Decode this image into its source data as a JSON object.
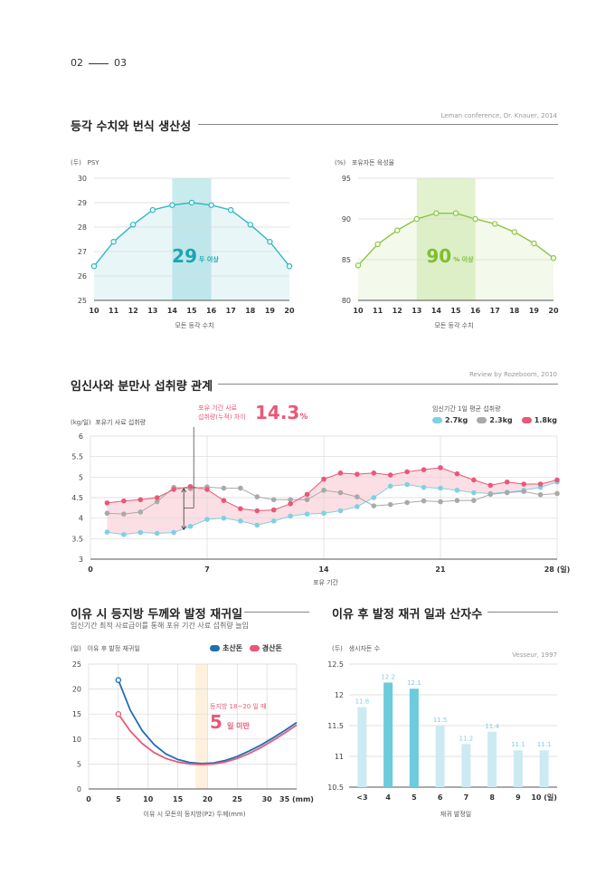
{
  "page_numbers": {
    "left": "02",
    "right": "03"
  },
  "sections": {
    "s1": {
      "title": "등각 수치와 번식 생산성",
      "source": "Leman conference, Dr. Knauer, 2014"
    },
    "s2": {
      "title": "임신사와 분만사 섭취량 관계",
      "source": "Review by Rozeboom, 2010"
    },
    "s3": {
      "title": "이유 시 등지방 두께와 발정 재귀일",
      "subtitle": "임신기간 최적 사료급이를 통해 포유 기간 사료 섭취량 늘임"
    },
    "s4": {
      "title": "이유 후 발정 재귀 일과 산자수",
      "source": "Vesseur, 1997"
    }
  },
  "colors": {
    "teal": "#2bb8c2",
    "green": "#8cc63f",
    "pink": "#e95878",
    "gray": "#a9a9a9",
    "lightblue": "#7fd0e4",
    "navy": "#1c6fb5"
  },
  "chart_data": [
    {
      "type": "line",
      "unit_label": "(두)",
      "series_label": "PSY",
      "xlabel": "모돈 등각 수치",
      "x": [
        10,
        11,
        12,
        13,
        14,
        15,
        16,
        17,
        18,
        19
      ],
      "x_ticks": [
        10,
        11,
        12,
        13,
        14,
        15,
        16,
        17,
        18,
        19,
        20
      ],
      "xlim": [
        10,
        20
      ],
      "ylim": [
        25,
        30
      ],
      "y_ticks": [
        25,
        26,
        27,
        28,
        29,
        30
      ],
      "series": [
        {
          "values": [
            26.4,
            27.4,
            28.1,
            28.7,
            28.9,
            29.0,
            28.9,
            28.7,
            28.1,
            27.4,
            26.4
          ],
          "x": [
            10,
            11,
            12,
            13,
            14,
            15,
            16,
            17,
            18,
            19,
            20
          ]
        }
      ],
      "highlight_range": [
        14,
        16
      ],
      "annotation": {
        "value": "29",
        "suffix": "두 이상"
      },
      "grid": true
    },
    {
      "type": "line",
      "unit_label": "(%)",
      "series_label": "포유자돈 육성율",
      "xlabel": "모돈 등각 수치",
      "x_ticks": [
        10,
        11,
        12,
        13,
        14,
        15,
        16,
        17,
        18,
        19,
        20
      ],
      "xlim": [
        10,
        20
      ],
      "ylim": [
        80,
        95
      ],
      "y_ticks": [
        80,
        85,
        90,
        95
      ],
      "series": [
        {
          "values": [
            84.3,
            86.9,
            88.6,
            90.0,
            90.7,
            90.7,
            90.0,
            89.4,
            88.4,
            87.0,
            85.2
          ],
          "x": [
            10,
            11,
            12,
            13,
            14,
            15,
            16,
            17,
            18,
            19,
            20
          ]
        }
      ],
      "highlight_range": [
        13,
        16
      ],
      "annotation": {
        "value": "90",
        "suffix": "% 이상"
      },
      "grid": true
    },
    {
      "type": "line",
      "unit_label": "(kg/일)",
      "series_label": "포유기 사료 섭취량",
      "xlabel": "포유 기간",
      "x_unit": "(일)",
      "x_ticks": [
        0,
        7,
        14,
        21,
        28
      ],
      "xlim": [
        0,
        28
      ],
      "ylim": [
        3,
        6
      ],
      "y_ticks": [
        3,
        3.5,
        4,
        4.5,
        5,
        5.5,
        6
      ],
      "legend_title": "임신기간 1일 평균 섭취량",
      "annotation": {
        "label_line1": "포유 기간 사료",
        "label_line2": "섭취량(누적) 차이",
        "value": "14.3",
        "unit": "%"
      },
      "series": [
        {
          "name": "2.7kg",
          "color": "#7fd0e4",
          "x": [
            1,
            2,
            3,
            4,
            5,
            6,
            7,
            8,
            9,
            10,
            11,
            12,
            13,
            14,
            15,
            16,
            17,
            18,
            19,
            20,
            21,
            22,
            23,
            24,
            25,
            26,
            27,
            28
          ],
          "values": [
            3.66,
            3.6,
            3.65,
            3.63,
            3.65,
            3.8,
            3.97,
            4.0,
            3.93,
            3.83,
            3.93,
            4.05,
            4.1,
            4.12,
            4.18,
            4.28,
            4.5,
            4.78,
            4.82,
            4.75,
            4.73,
            4.68,
            4.62,
            4.6,
            4.63,
            4.68,
            4.75,
            4.88
          ]
        },
        {
          "name": "2.3kg",
          "color": "#a9a9a9",
          "x": [
            1,
            2,
            3,
            4,
            5,
            6,
            7,
            8,
            9,
            10,
            11,
            12,
            13,
            14,
            15,
            16,
            17,
            18,
            19,
            20,
            21,
            22,
            23,
            24,
            25,
            26,
            27,
            28
          ],
          "values": [
            4.12,
            4.1,
            4.15,
            4.4,
            4.75,
            4.72,
            4.76,
            4.73,
            4.73,
            4.52,
            4.45,
            4.45,
            4.45,
            4.68,
            4.62,
            4.52,
            4.3,
            4.33,
            4.38,
            4.42,
            4.4,
            4.43,
            4.43,
            4.58,
            4.62,
            4.65,
            4.57,
            4.6
          ]
        },
        {
          "name": "1.8kg",
          "color": "#e95878",
          "x": [
            1,
            2,
            3,
            4,
            5,
            6,
            7,
            8,
            9,
            10,
            11,
            12,
            13,
            14,
            15,
            16,
            17,
            18,
            19,
            20,
            21,
            22,
            23,
            24,
            25,
            26,
            27,
            28
          ],
          "values": [
            4.37,
            4.42,
            4.45,
            4.5,
            4.7,
            4.77,
            4.7,
            4.43,
            4.23,
            4.18,
            4.2,
            4.35,
            4.58,
            4.95,
            5.1,
            5.07,
            5.1,
            5.05,
            5.13,
            5.18,
            5.23,
            5.08,
            4.93,
            4.8,
            4.88,
            4.83,
            4.83,
            4.93
          ]
        }
      ],
      "grid": true
    },
    {
      "type": "line",
      "unit_label": "(일)",
      "series_label": "이유 후 발정 재귀일",
      "xlabel": "이유 시 모돈의 등지방(P2) 두께(mm)",
      "x_unit": "(mm)",
      "x_ticks": [
        0,
        5,
        10,
        15,
        20,
        25,
        30,
        35
      ],
      "xlim": [
        0,
        35
      ],
      "ylim": [
        0,
        25
      ],
      "y_ticks": [
        0,
        5,
        10,
        15,
        20,
        25
      ],
      "highlight_range": [
        18,
        20
      ],
      "annotation": {
        "label": "등지방 18~20 일 때",
        "value": "5",
        "suffix": "일 미만"
      },
      "series": [
        {
          "name": "초산돈",
          "color": "#1c6fb5",
          "x": [
            5,
            7,
            9,
            11,
            13,
            15,
            17,
            19,
            21,
            23,
            25,
            27,
            29,
            31,
            33,
            35
          ],
          "values": [
            21.8,
            15.8,
            11.7,
            8.9,
            7.0,
            5.9,
            5.3,
            5.1,
            5.2,
            5.7,
            6.5,
            7.6,
            8.8,
            10.2,
            11.7,
            13.3
          ]
        },
        {
          "name": "경산돈",
          "color": "#e95878",
          "x": [
            5,
            7,
            9,
            11,
            13,
            15,
            17,
            19,
            21,
            23,
            25,
            27,
            29,
            31,
            33,
            35
          ],
          "values": [
            15.0,
            11.6,
            9.1,
            7.3,
            6.1,
            5.4,
            5.0,
            4.9,
            5.0,
            5.4,
            6.1,
            7.1,
            8.3,
            9.7,
            11.2,
            12.8
          ]
        }
      ],
      "grid": true
    },
    {
      "type": "bar",
      "unit_label": "(두)",
      "series_label": "생시자돈 수",
      "xlabel": "재귀 발정일",
      "x_unit": "(일)",
      "categories": [
        "<3",
        "4",
        "5",
        "6",
        "7",
        "8",
        "9",
        "10"
      ],
      "values": [
        11.8,
        12.2,
        12.1,
        11.5,
        11.2,
        11.4,
        11.1,
        11.1
      ],
      "value_labels": [
        "11.8",
        "12.2",
        "12.1",
        "11.5",
        "11.2",
        "11.4",
        "11.1",
        "11.1"
      ],
      "highlight": [
        "4",
        "5"
      ],
      "ylim": [
        10.5,
        12.5
      ],
      "y_ticks": [
        "10.5",
        "11",
        "11.5",
        "12",
        "12.5"
      ],
      "grid": true
    }
  ]
}
